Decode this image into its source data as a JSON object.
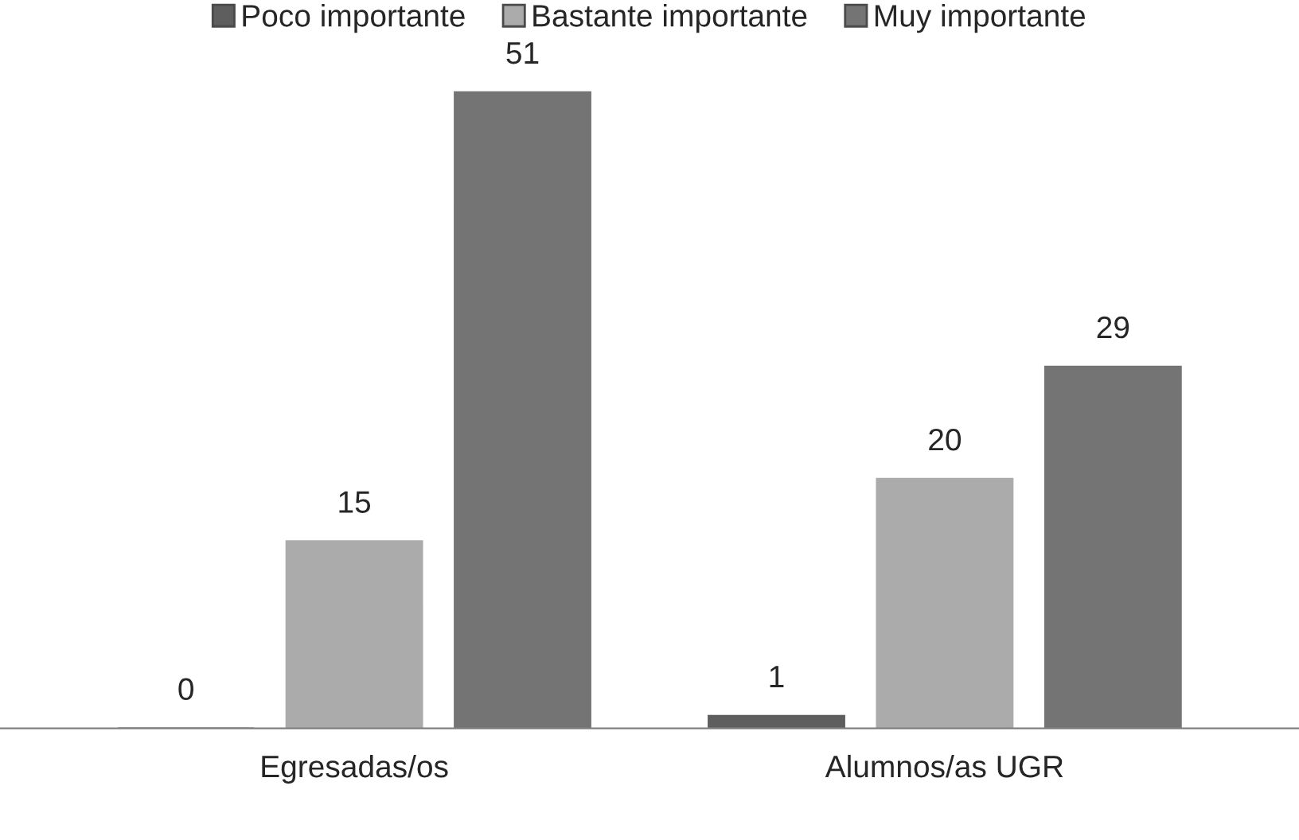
{
  "chart_data": {
    "type": "bar",
    "categories": [
      "Egresadas/os",
      "Alumnos/as UGR"
    ],
    "series": [
      {
        "name": "Poco importante",
        "color": "#5e5e5e",
        "values": [
          0,
          1
        ]
      },
      {
        "name": "Bastante importante",
        "color": "#ababab",
        "values": [
          15,
          20
        ]
      },
      {
        "name": "Muy importante",
        "color": "#747474",
        "values": [
          51,
          29
        ]
      }
    ],
    "data_labels": true,
    "legend": "top",
    "grid": false
  }
}
